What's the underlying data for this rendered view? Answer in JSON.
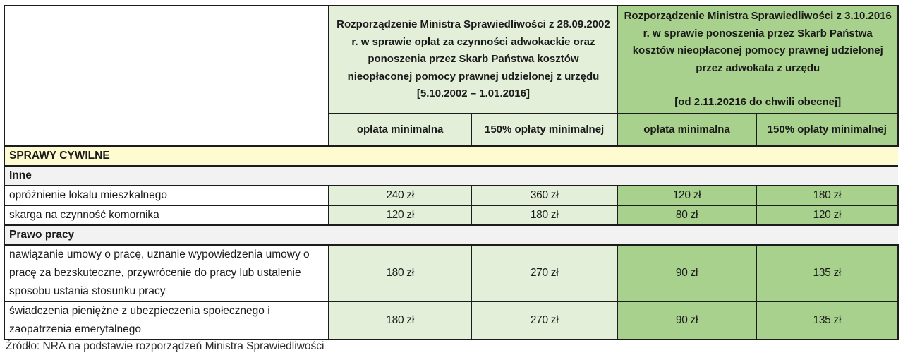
{
  "header": {
    "regulation_2002": {
      "title": "Rozporządzenie Ministra Sprawiedliwości z 28.09.2002 r. w sprawie opłat za czynności adwokackie oraz ponoszenia przez Skarb Państwa kosztów nieopłaconej pomocy prawnej udzielonej z urzędu",
      "period": "[5.10.2002 –  1.01.2016]",
      "col_min": "opłata minimalna",
      "col_150": "150% opłaty minimalnej",
      "color": "#e3efd9"
    },
    "regulation_2016": {
      "title": "Rozporządzenie Ministra Sprawiedliwości z 3.10.2016 r. w sprawie ponoszenia przez Skarb Państwa kosztów nieopłaconej pomocy prawnej udzielonej przez adwokata z urzędu",
      "period": "[od 2.11.20216 do chwili obecnej]",
      "col_min": "opłata minimalna",
      "col_150": "150% opłaty minimalnej",
      "color": "#a9d18e"
    }
  },
  "section": {
    "label": "SPRAWY CYWILNE",
    "color": "#fefbd0"
  },
  "groups": [
    {
      "label": "Inne",
      "rows": [
        {
          "label": "opróżnienie lokalu mieszkalnego",
          "v2002_min": "240 zł",
          "v2002_150": "360 zł",
          "v2016_min": "120 zł",
          "v2016_150": "180 zł"
        },
        {
          "label": "skarga na czynność komornika",
          "v2002_min": "120 zł",
          "v2002_150": "180 zł",
          "v2016_min": "80 zł",
          "v2016_150": "120 zł"
        }
      ]
    },
    {
      "label": "Prawo pracy",
      "rows": [
        {
          "label": "nawiązanie umowy o pracę, uznanie wypowiedzenia umowy o pracę za bezskuteczne, przywrócenie do pracy lub ustalenie sposobu ustania stosunku pracy",
          "v2002_min": "180 zł",
          "v2002_150": "270 zł",
          "v2016_min": "90 zł",
          "v2016_150": "135 zł"
        },
        {
          "label": "świadczenia pieniężne z ubezpieczenia społecznego i zaopatrzenia emerytalnego",
          "v2002_min": "180 zł",
          "v2002_150": "270 zł",
          "v2016_min": "90 zł",
          "v2016_150": "135 zł"
        }
      ]
    }
  ],
  "source": "Źródło: NRA na podstawie rozporządzeń Ministra Sprawiedliwości"
}
